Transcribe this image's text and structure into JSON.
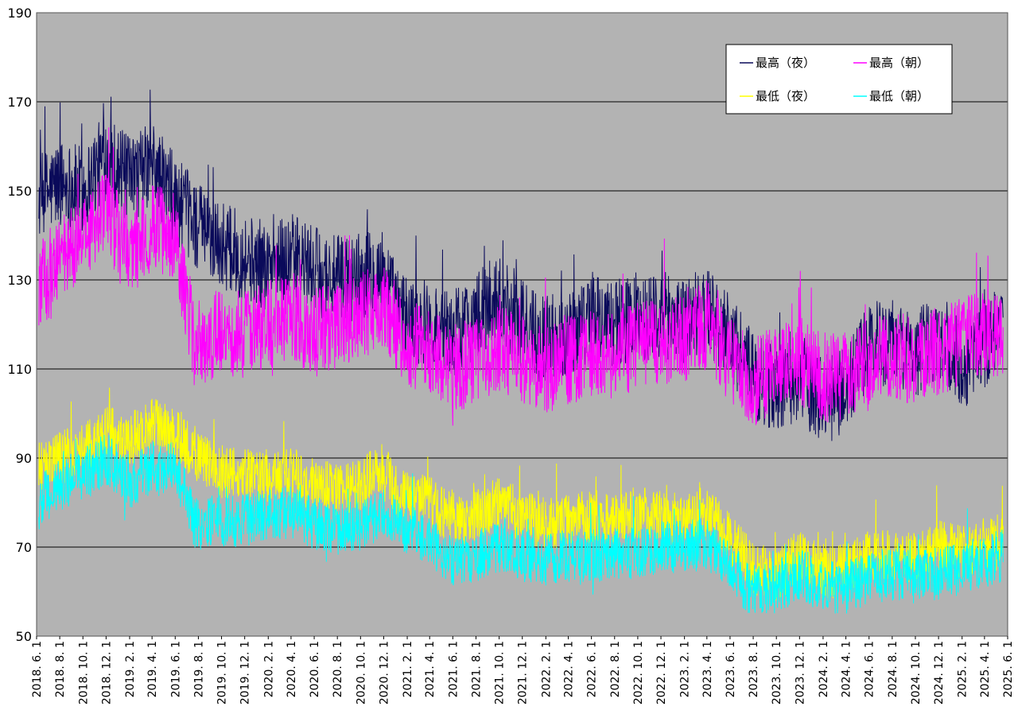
{
  "chart_data": {
    "type": "line",
    "title": "",
    "xlabel": "",
    "ylabel": "",
    "ylim": [
      50,
      190
    ],
    "y_ticks": [
      "50",
      "70",
      "90",
      "110",
      "130",
      "150",
      "170",
      "190"
    ],
    "x_range": [
      "2018-06-01",
      "2025-06-01"
    ],
    "x_tick_labels": [
      "2018. 6. 1",
      "2018. 8. 1",
      "2018. 10. 1",
      "2018. 12. 1",
      "2019. 2. 1",
      "2019. 4. 1",
      "2019. 6. 1",
      "2019. 8. 1",
      "2019. 10. 1",
      "2019. 12. 1",
      "2020. 2. 1",
      "2020. 4. 1",
      "2020. 6. 1",
      "2020. 8. 1",
      "2020. 10. 1",
      "2020. 12. 1",
      "2021. 2. 1",
      "2021. 4. 1",
      "2021. 6. 1",
      "2021. 8. 1",
      "2021. 10. 1",
      "2021. 12. 1",
      "2022. 2. 1",
      "2022. 4. 1",
      "2022. 6. 1",
      "2022. 8. 1",
      "2022. 10. 1",
      "2022. 12. 1",
      "2023. 2. 1",
      "2023. 4. 1",
      "2023. 6. 1",
      "2023. 8. 1",
      "2023. 10. 1",
      "2023. 12. 1",
      "2024. 2. 1",
      "2024. 4. 1",
      "2024. 6. 1",
      "2024. 8. 1",
      "2024. 10. 1",
      "2024. 12. 1",
      "2025. 2. 1",
      "2025. 4. 1",
      "2025. 6. 1"
    ],
    "grid": true,
    "legend_placement": "top-right",
    "background_color": "#b3b3b3",
    "data_start": "2018-06-07",
    "data_end": "2025-05-20",
    "series": [
      {
        "name": "最高（夜）",
        "color": "#0a0a5a",
        "noise": 10,
        "trend_dates": [
          "2018-06-07",
          "2018-08-01",
          "2018-10-01",
          "2018-12-01",
          "2019-02-01",
          "2019-04-01",
          "2019-06-01",
          "2019-08-01",
          "2019-10-01",
          "2019-12-01",
          "2020-02-01",
          "2020-04-01",
          "2020-06-01",
          "2020-08-01",
          "2020-10-01",
          "2020-12-01",
          "2021-01-10",
          "2021-04-01",
          "2021-06-01",
          "2021-08-01",
          "2021-10-01",
          "2021-12-01",
          "2022-02-01",
          "2022-04-01",
          "2022-06-01",
          "2022-08-01",
          "2022-10-01",
          "2022-12-01",
          "2023-02-01",
          "2023-04-01",
          "2023-06-01",
          "2023-08-01",
          "2023-10-01",
          "2023-12-01",
          "2024-02-01",
          "2024-04-01",
          "2024-06-01",
          "2024-08-01",
          "2024-10-01",
          "2024-12-01",
          "2025-02-01",
          "2025-04-01",
          "2025-05-20"
        ],
        "trend_values": [
          148,
          152,
          150,
          158,
          152,
          156,
          148,
          142,
          138,
          135,
          133,
          135,
          132,
          130,
          131,
          132,
          122,
          120,
          118,
          122,
          126,
          120,
          117,
          118,
          122,
          120,
          122,
          122,
          121,
          123,
          118,
          108,
          106,
          108,
          103,
          105,
          115,
          116,
          113,
          118,
          110,
          115,
          120
        ]
      },
      {
        "name": "最高（朝）",
        "color": "#ff00ff",
        "noise": 10,
        "trend_dates": [
          "2018-06-07",
          "2018-08-01",
          "2018-10-01",
          "2018-12-01",
          "2019-02-01",
          "2019-04-01",
          "2019-06-01",
          "2019-07-20",
          "2019-10-01",
          "2019-12-01",
          "2020-02-01",
          "2020-04-01",
          "2020-06-01",
          "2020-08-01",
          "2020-10-01",
          "2020-12-01",
          "2021-02-01",
          "2021-04-01",
          "2021-06-01",
          "2021-08-01",
          "2021-10-01",
          "2021-12-01",
          "2022-02-01",
          "2022-04-01",
          "2022-06-01",
          "2022-08-01",
          "2022-10-01",
          "2022-12-01",
          "2023-02-01",
          "2023-04-01",
          "2023-06-01",
          "2023-08-01",
          "2023-10-01",
          "2023-12-01",
          "2024-02-01",
          "2024-04-01",
          "2024-06-01",
          "2024-08-01",
          "2024-10-01",
          "2024-12-01",
          "2025-02-01",
          "2025-04-01",
          "2025-05-20"
        ],
        "trend_values": [
          128,
          135,
          138,
          145,
          135,
          142,
          140,
          116,
          118,
          118,
          120,
          122,
          118,
          120,
          122,
          124,
          116,
          114,
          110,
          112,
          115,
          112,
          110,
          112,
          113,
          113,
          115,
          116,
          117,
          120,
          112,
          107,
          110,
          112,
          108,
          108,
          112,
          113,
          112,
          114,
          116,
          118,
          118
        ]
      },
      {
        "name": "最低（夜）",
        "color": "#ffff00",
        "noise": 6,
        "trend_dates": [
          "2018-06-07",
          "2018-08-01",
          "2018-10-01",
          "2018-12-01",
          "2019-02-01",
          "2019-04-01",
          "2019-06-01",
          "2019-08-01",
          "2019-10-01",
          "2019-12-01",
          "2020-02-01",
          "2020-04-01",
          "2020-06-01",
          "2020-08-01",
          "2020-10-01",
          "2020-12-01",
          "2021-01-05",
          "2021-04-01",
          "2021-06-01",
          "2021-08-01",
          "2021-10-01",
          "2021-12-01",
          "2022-02-01",
          "2022-04-01",
          "2022-06-01",
          "2022-08-01",
          "2022-10-01",
          "2022-12-01",
          "2023-02-01",
          "2023-04-01",
          "2023-06-01",
          "2023-08-01",
          "2023-10-01",
          "2023-12-01",
          "2024-02-01",
          "2024-04-01",
          "2024-06-01",
          "2024-08-01",
          "2024-10-01",
          "2024-12-01",
          "2025-02-01",
          "2025-04-01",
          "2025-05-20"
        ],
        "trend_values": [
          88,
          90,
          92,
          96,
          94,
          98,
          95,
          90,
          87,
          86,
          86,
          87,
          84,
          83,
          84,
          88,
          82,
          80,
          76,
          77,
          80,
          77,
          75,
          76,
          77,
          76,
          78,
          77,
          76,
          78,
          72,
          65,
          64,
          68,
          64,
          65,
          68,
          68,
          68,
          70,
          69,
          71,
          72
        ]
      },
      {
        "name": "最低（朝）",
        "color": "#00ffff",
        "noise": 6,
        "trend_dates": [
          "2018-06-07",
          "2018-08-01",
          "2018-10-01",
          "2018-12-01",
          "2019-02-01",
          "2019-04-01",
          "2019-06-01",
          "2019-07-25",
          "2019-10-01",
          "2019-12-01",
          "2020-02-01",
          "2020-04-01",
          "2020-06-01",
          "2020-08-01",
          "2020-10-01",
          "2020-12-01",
          "2021-02-01",
          "2021-04-01",
          "2021-06-01",
          "2021-08-01",
          "2021-10-01",
          "2021-12-01",
          "2022-02-01",
          "2022-04-01",
          "2022-06-01",
          "2022-08-01",
          "2022-10-01",
          "2022-12-01",
          "2023-02-01",
          "2023-04-01",
          "2023-06-01",
          "2023-08-01",
          "2023-10-01",
          "2023-12-01",
          "2024-02-01",
          "2024-04-01",
          "2024-06-01",
          "2024-08-01",
          "2024-10-01",
          "2024-12-01",
          "2025-02-01",
          "2025-04-01",
          "2025-05-20"
        ],
        "trend_values": [
          80,
          84,
          86,
          90,
          84,
          88,
          88,
          75,
          76,
          76,
          77,
          78,
          75,
          74,
          75,
          78,
          74,
          72,
          66,
          68,
          70,
          68,
          67,
          68,
          68,
          68,
          69,
          70,
          70,
          71,
          65,
          60,
          61,
          64,
          61,
          61,
          63,
          64,
          63,
          64,
          65,
          67,
          68
        ]
      }
    ]
  }
}
